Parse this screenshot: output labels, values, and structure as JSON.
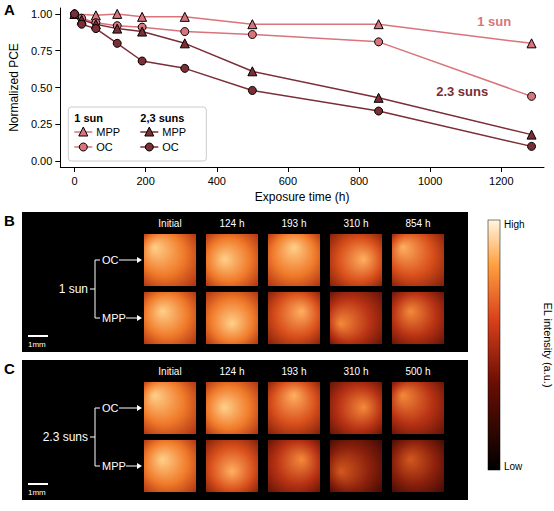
{
  "chart_data": {
    "type": "line",
    "panel_label": "A",
    "x_label": "Exposure time (h)",
    "y_label": "Normalized PCE",
    "xlim": [
      -40,
      1320
    ],
    "xticks": [
      0,
      200,
      400,
      600,
      800,
      1000,
      1200
    ],
    "ylim": [
      -0.04,
      1.04
    ],
    "yticks": [
      {
        "value": 0,
        "label": "0.00"
      },
      {
        "value": 0.25,
        "label": "0.25"
      },
      {
        "value": 0.5,
        "label": "0.50"
      },
      {
        "value": 0.75,
        "label": "0.75"
      },
      {
        "value": 1,
        "label": "1.00"
      }
    ],
    "grid": false,
    "legend": "lower left",
    "series": [
      {
        "name": "MPP",
        "group": "1 sun",
        "color": "#d9737c",
        "marker": "triangle",
        "x": [
          0,
          60,
          120,
          190,
          310,
          500,
          855,
          1285
        ],
        "values": [
          1.0,
          0.99,
          1.0,
          0.98,
          0.98,
          0.93,
          0.93,
          0.8
        ]
      },
      {
        "name": "OC",
        "group": "1 sun",
        "color": "#d9737c",
        "marker": "circle",
        "x": [
          0,
          20,
          60,
          120,
          190,
          310,
          500,
          855,
          1285
        ],
        "values": [
          1.0,
          0.97,
          0.94,
          0.92,
          0.91,
          0.88,
          0.86,
          0.81,
          0.44
        ]
      },
      {
        "name": "MPP",
        "group": "2,3 suns",
        "color": "#7a2e35",
        "marker": "triangle",
        "x": [
          0,
          20,
          60,
          120,
          190,
          310,
          500,
          855,
          1285
        ],
        "values": [
          1.0,
          0.96,
          0.93,
          0.9,
          0.88,
          0.8,
          0.61,
          0.43,
          0.18
        ]
      },
      {
        "name": "OC",
        "group": "2,3 suns",
        "color": "#7a2e35",
        "marker": "circle",
        "x": [
          0,
          20,
          60,
          120,
          190,
          310,
          500,
          855,
          1285
        ],
        "values": [
          1.0,
          0.93,
          0.9,
          0.8,
          0.68,
          0.63,
          0.48,
          0.34,
          0.1
        ]
      }
    ],
    "annotations": [
      {
        "text": "1 sun",
        "x": 1180,
        "y": 0.95,
        "color": "#d9737c"
      },
      {
        "text": "2.3 suns",
        "x": 1090,
        "y": 0.47,
        "color": "#7a2e35"
      }
    ]
  },
  "el_panels": [
    {
      "panel_label": "B",
      "condition": "1 sun",
      "rows": [
        "OC",
        "MPP"
      ],
      "columns": [
        "Initial",
        "124 h",
        "193 h",
        "310 h",
        "854 h"
      ],
      "scale_bar": "1mm"
    },
    {
      "panel_label": "C",
      "condition": "2.3 suns",
      "rows": [
        "OC",
        "MPP"
      ],
      "columns": [
        "Initial",
        "124 h",
        "193 h",
        "310 h",
        "500 h"
      ],
      "scale_bar": "1mm"
    }
  ],
  "colorbar": {
    "title": "EL intensity (a.u.)",
    "high": "High",
    "low": "Low"
  }
}
